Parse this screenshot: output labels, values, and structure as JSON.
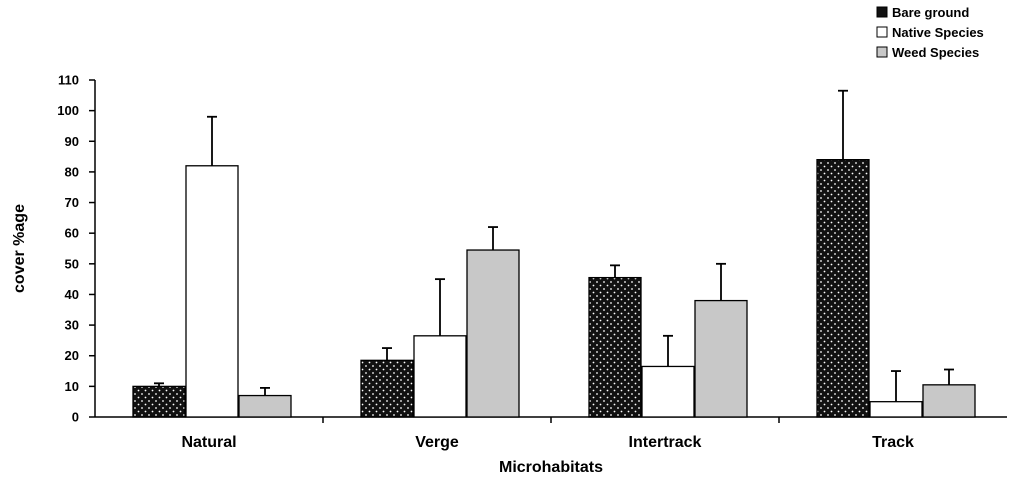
{
  "chart_data": {
    "type": "bar",
    "title": "",
    "xlabel": "Microhabitats",
    "ylabel": "cover %age",
    "ylim": [
      0,
      110
    ],
    "yticks": [
      0,
      10,
      20,
      30,
      40,
      50,
      60,
      70,
      80,
      90,
      100,
      110
    ],
    "categories": [
      "Natural",
      "Verge",
      "Intertrack",
      "Track"
    ],
    "series": [
      {
        "name": "Bare ground",
        "values": [
          10,
          18.5,
          45.5,
          84
        ],
        "errors": [
          1,
          4,
          4,
          22.5
        ],
        "color": "#111111",
        "pattern": "dotted"
      },
      {
        "name": "Native Species",
        "values": [
          82,
          26.5,
          16.5,
          5
        ],
        "errors": [
          16,
          18.5,
          10,
          10
        ],
        "color": "#ffffff",
        "pattern": "none"
      },
      {
        "name": "Weed Species",
        "values": [
          7,
          54.5,
          38,
          10.5
        ],
        "errors": [
          2.5,
          7.5,
          12,
          5
        ],
        "color": "#c8c8c8",
        "pattern": "none"
      }
    ],
    "grid": false,
    "legend_position": "top-right"
  }
}
